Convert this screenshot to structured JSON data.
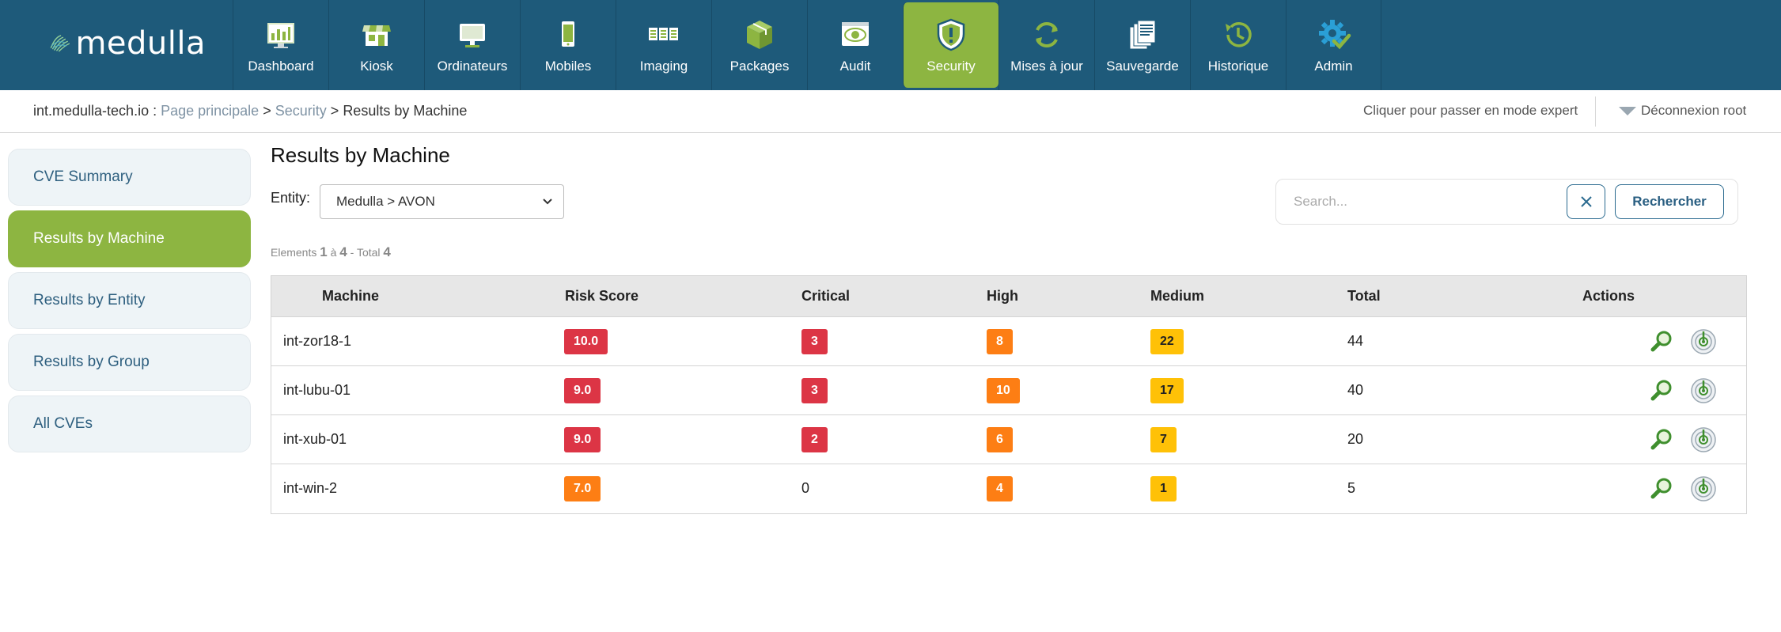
{
  "header": {
    "logo_text": "medulla",
    "nav": [
      {
        "label": "Dashboard",
        "icon": "dashboard-icon"
      },
      {
        "label": "Kiosk",
        "icon": "kiosk-icon"
      },
      {
        "label": "Ordinateurs",
        "icon": "computer-icon"
      },
      {
        "label": "Mobiles",
        "icon": "mobile-icon"
      },
      {
        "label": "Imaging",
        "icon": "imaging-icon"
      },
      {
        "label": "Packages",
        "icon": "packages-icon"
      },
      {
        "label": "Audit",
        "icon": "audit-icon"
      },
      {
        "label": "Security",
        "icon": "security-shield-icon",
        "active": true
      },
      {
        "label": "Mises à jour",
        "icon": "updates-icon"
      },
      {
        "label": "Sauvegarde",
        "icon": "backup-icon"
      },
      {
        "label": "Historique",
        "icon": "history-icon"
      },
      {
        "label": "Admin",
        "icon": "admin-gear-icon"
      }
    ]
  },
  "breadcrumb": {
    "host": "int.medulla-tech.io :",
    "home": "Page principale",
    "sep": ">",
    "section": "Security",
    "current": "Results by Machine",
    "expert_mode": "Cliquer pour passer en mode expert",
    "logout": "Déconnexion root"
  },
  "sidebar": {
    "items": [
      {
        "label": "CVE Summary"
      },
      {
        "label": "Results by Machine",
        "active": true
      },
      {
        "label": "Results by Entity"
      },
      {
        "label": "Results by Group"
      },
      {
        "label": "All CVEs"
      }
    ]
  },
  "main": {
    "title": "Results by Machine",
    "entity_label": "Entity:",
    "entity_value": "Medulla > AVON",
    "search_placeholder": "Search...",
    "search_button": "Rechercher",
    "counter": {
      "prefix": "Elements",
      "start": "1",
      "to": "à",
      "end": "4",
      "sep": "- Total",
      "total": "4"
    }
  },
  "table": {
    "headers": [
      "Machine",
      "Risk Score",
      "Critical",
      "High",
      "Medium",
      "Total",
      "Actions"
    ],
    "rows": [
      {
        "machine": "int-zor18-1",
        "risk": "10.0",
        "risk_level": "red",
        "critical": "3",
        "critical_badge": true,
        "high": "8",
        "medium": "22",
        "total": "44"
      },
      {
        "machine": "int-lubu-01",
        "risk": "9.0",
        "risk_level": "red",
        "critical": "3",
        "critical_badge": true,
        "high": "10",
        "medium": "17",
        "total": "40"
      },
      {
        "machine": "int-xub-01",
        "risk": "9.0",
        "risk_level": "red",
        "critical": "2",
        "critical_badge": true,
        "high": "6",
        "medium": "7",
        "total": "20"
      },
      {
        "machine": "int-win-2",
        "risk": "7.0",
        "risk_level": "orange",
        "critical": "0",
        "critical_badge": false,
        "high": "4",
        "medium": "1",
        "total": "5"
      }
    ]
  },
  "colors": {
    "header_bg": "#1e5a7a",
    "accent_green": "#8db541",
    "critical_red": "#dc3545",
    "high_orange": "#fd7e14",
    "medium_yellow": "#ffc107"
  }
}
